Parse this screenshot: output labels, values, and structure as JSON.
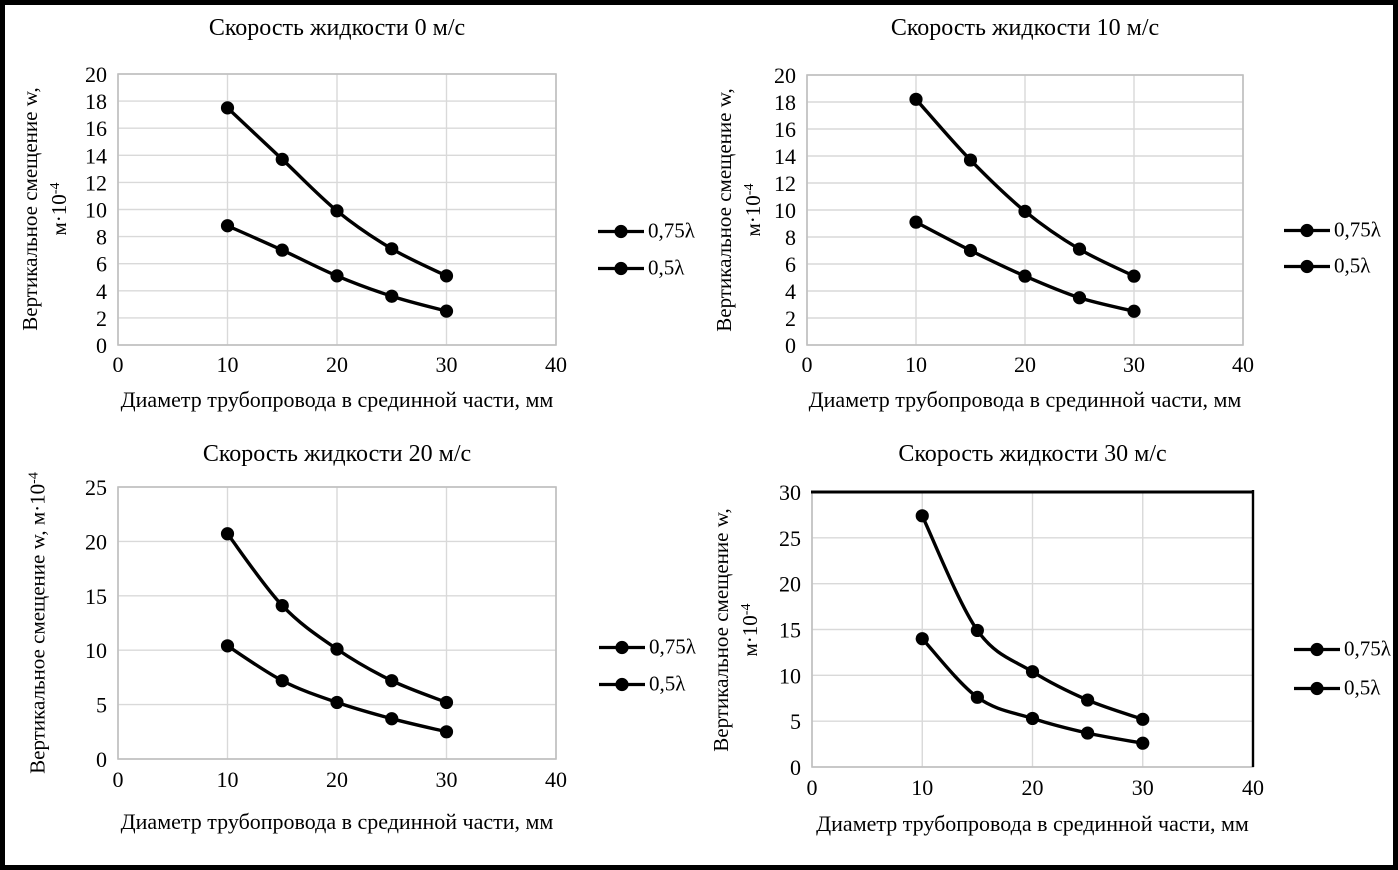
{
  "figure": {
    "colors": {
      "background": "#ffffff",
      "frame_border": "#000000",
      "grid": "#d9d9d9",
      "axis": "#bfbfbf",
      "series": "#000000",
      "text": "#000000"
    }
  },
  "chart_data": [
    {
      "type": "line",
      "title": "Скорость жидкости 0 м/с",
      "xlabel": "Диаметр трубопровода в срединной части, мм",
      "ylabel_lines": [
        "Вертикальное смещение w,",
        "м·10"
      ],
      "ylabel_sup": "-4",
      "x": [
        10,
        15,
        20,
        25,
        30
      ],
      "series": [
        {
          "name": "0,75λ",
          "values": [
            17.5,
            13.7,
            9.9,
            7.1,
            5.1
          ]
        },
        {
          "name": "0,5λ",
          "values": [
            8.8,
            7.0,
            5.1,
            3.6,
            2.5
          ]
        }
      ],
      "xlim": [
        0,
        40
      ],
      "ylim": [
        0,
        20
      ],
      "xticks": [
        0,
        10,
        20,
        30,
        40
      ],
      "yticks": [
        0,
        2,
        4,
        6,
        8,
        10,
        12,
        14,
        16,
        18,
        20
      ],
      "grid": true,
      "legend_position": "right"
    },
    {
      "type": "line",
      "title": "Скорость жидкости 10 м/с",
      "xlabel": "Диаметр трубопровода в срединной части, мм",
      "ylabel_lines": [
        "Вертикальное смещение w,",
        "м·10"
      ],
      "ylabel_sup": "-4",
      "x": [
        10,
        15,
        20,
        25,
        30
      ],
      "series": [
        {
          "name": "0,75λ",
          "values": [
            18.2,
            13.7,
            9.9,
            7.1,
            5.1
          ]
        },
        {
          "name": "0,5λ",
          "values": [
            9.1,
            7.0,
            5.1,
            3.5,
            2.5
          ]
        }
      ],
      "xlim": [
        0,
        40
      ],
      "ylim": [
        0,
        20
      ],
      "xticks": [
        0,
        10,
        20,
        30,
        40
      ],
      "yticks": [
        0,
        2,
        4,
        6,
        8,
        10,
        12,
        14,
        16,
        18,
        20
      ],
      "grid": true,
      "legend_position": "right"
    },
    {
      "type": "line",
      "title": "Скорость жидкости 20 м/с",
      "xlabel": "Диаметр трубопровода в срединной части, мм",
      "ylabel_lines": [
        "Вертикальное смещение w, м·10"
      ],
      "ylabel_sup": "-4",
      "x": [
        10,
        15,
        20,
        25,
        30
      ],
      "series": [
        {
          "name": "0,75λ",
          "values": [
            20.7,
            14.1,
            10.1,
            7.2,
            5.2
          ]
        },
        {
          "name": "0,5λ",
          "values": [
            10.4,
            7.2,
            5.2,
            3.7,
            2.5
          ]
        }
      ],
      "xlim": [
        0,
        40
      ],
      "ylim": [
        0,
        25
      ],
      "xticks": [
        0,
        10,
        20,
        30,
        40
      ],
      "yticks": [
        0,
        5,
        10,
        15,
        20,
        25
      ],
      "grid": true,
      "legend_position": "right"
    },
    {
      "type": "line",
      "title": "Скорость жидкости 30 м/с",
      "xlabel": "Диаметр трубопровода в срединной части, мм",
      "ylabel_lines": [
        "Вертикальное смещение w,",
        "м·10"
      ],
      "ylabel_sup": "-4",
      "x": [
        10,
        15,
        20,
        25,
        30
      ],
      "series": [
        {
          "name": "0,75λ",
          "values": [
            27.4,
            14.9,
            10.4,
            7.3,
            5.2
          ]
        },
        {
          "name": "0,5λ",
          "values": [
            14.0,
            7.6,
            5.3,
            3.7,
            2.6
          ]
        }
      ],
      "xlim": [
        0,
        40
      ],
      "ylim": [
        0,
        30
      ],
      "xticks": [
        0,
        10,
        20,
        30,
        40
      ],
      "yticks": [
        0,
        5,
        10,
        15,
        20,
        25,
        30
      ],
      "grid": true,
      "legend_position": "right",
      "plot_border": "black-top-right"
    }
  ]
}
